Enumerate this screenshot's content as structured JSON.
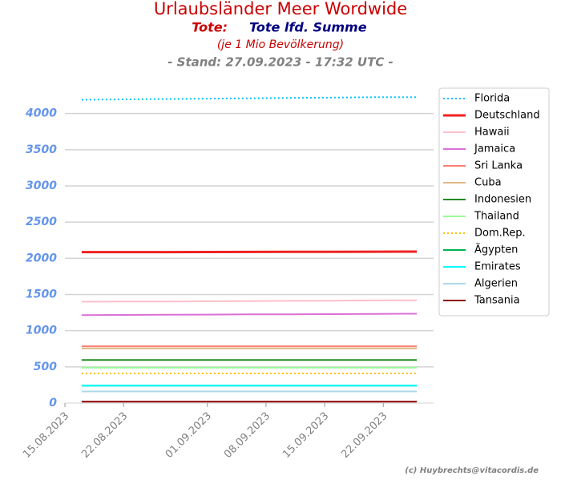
{
  "chart_data": {
    "type": "line",
    "title": "Urlaubsländer Meer Wordwide",
    "subtitle_prefix": "Tote:",
    "subtitle": "Tote lfd. Summe",
    "note": "(je 1 Mio Bevölkerung)",
    "timestamp": "- Stand: 27.09.2023 - 17:32 UTC -",
    "credit": "(c) Huybrechts@vitacordis.de",
    "x": [
      "17.08.2023",
      "22.08.2023",
      "27.08.2023",
      "01.09.2023",
      "06.09.2023",
      "11.09.2023",
      "16.09.2023",
      "21.09.2023",
      "26.09.2023"
    ],
    "xlim": [
      "15.08.2023",
      "28.09.2023"
    ],
    "xticks": [
      "15.08.2023",
      "22.08.2023",
      "01.09.2023",
      "08.09.2023",
      "15.09.2023",
      "22.09.2023"
    ],
    "ylim": [
      0,
      4450
    ],
    "yticks": [
      0,
      500,
      1000,
      1500,
      2000,
      2500,
      3000,
      3500,
      4000
    ],
    "grid": true,
    "legend": "outside-right",
    "series": [
      {
        "name": "Florida",
        "color": "#00bfff",
        "linestyle": "dotted",
        "values": [
          4190,
          4195,
          4200,
          4205,
          4210,
          4215,
          4220,
          4225,
          4225
        ]
      },
      {
        "name": "Deutschland",
        "color": "#ee2222",
        "linewidth": 3,
        "values": [
          2085,
          2085,
          2086,
          2087,
          2088,
          2089,
          2090,
          2091,
          2092
        ]
      },
      {
        "name": "Hawaii",
        "color": "#ffc0cb",
        "values": [
          1400,
          1402,
          1404,
          1406,
          1409,
          1412,
          1415,
          1418,
          1420
        ]
      },
      {
        "name": "Jamaica",
        "color": "#da70d6",
        "values": [
          1215,
          1218,
          1220,
          1222,
          1225,
          1227,
          1229,
          1232,
          1234
        ]
      },
      {
        "name": "Sri Lanka",
        "color": "#fa8072",
        "values": [
          785,
          785,
          785,
          785,
          785,
          785,
          785,
          785,
          785
        ]
      },
      {
        "name": "Cuba",
        "color": "#deb887",
        "values": [
          755,
          755,
          755,
          755,
          755,
          755,
          755,
          755,
          755
        ]
      },
      {
        "name": "Indonesien",
        "color": "#228b22",
        "values": [
          595,
          595,
          595,
          595,
          595,
          595,
          595,
          595,
          595
        ]
      },
      {
        "name": "Thailand",
        "color": "#98fb98",
        "values": [
          490,
          490,
          490,
          490,
          490,
          490,
          490,
          490,
          490
        ]
      },
      {
        "name": "Dom.Rep.",
        "color": "#ffc000",
        "linestyle": "dotted",
        "values": [
          410,
          410,
          410,
          410,
          410,
          410,
          410,
          410,
          410
        ]
      },
      {
        "name": "Ägypten",
        "color": "#00b050",
        "values": [
          240,
          240,
          240,
          240,
          240,
          240,
          240,
          240,
          240
        ]
      },
      {
        "name": "Emirates",
        "color": "#00ffff",
        "values": [
          240,
          240,
          240,
          240,
          240,
          240,
          240,
          240,
          240
        ]
      },
      {
        "name": "Algerien",
        "color": "#add8e6",
        "values": [
          160,
          160,
          160,
          160,
          160,
          160,
          160,
          160,
          160
        ]
      },
      {
        "name": "Tansania",
        "color": "#8b0000",
        "values": [
          20,
          20,
          20,
          20,
          20,
          20,
          20,
          20,
          20
        ]
      }
    ]
  }
}
